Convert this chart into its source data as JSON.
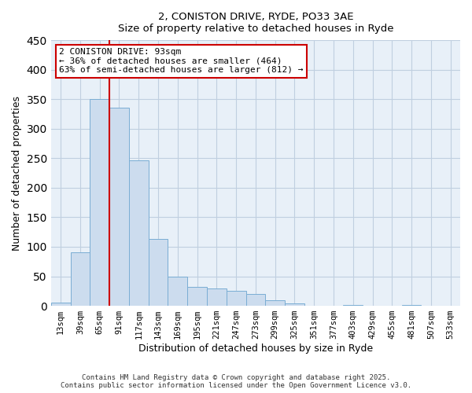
{
  "title_line1": "2, CONISTON DRIVE, RYDE, PO33 3AE",
  "title_line2": "Size of property relative to detached houses in Ryde",
  "xlabel": "Distribution of detached houses by size in Ryde",
  "ylabel": "Number of detached properties",
  "bar_labels": [
    "13sqm",
    "39sqm",
    "65sqm",
    "91sqm",
    "117sqm",
    "143sqm",
    "169sqm",
    "195sqm",
    "221sqm",
    "247sqm",
    "273sqm",
    "299sqm",
    "325sqm",
    "351sqm",
    "377sqm",
    "403sqm",
    "429sqm",
    "455sqm",
    "481sqm",
    "507sqm",
    "533sqm"
  ],
  "bar_values": [
    6,
    90,
    350,
    335,
    247,
    113,
    50,
    32,
    30,
    25,
    20,
    9,
    4,
    0,
    0,
    1,
    0,
    0,
    1,
    0,
    0
  ],
  "bar_color": "#ccdcee",
  "bar_edge_color": "#7aadd4",
  "ylim": [
    0,
    450
  ],
  "yticks": [
    0,
    50,
    100,
    150,
    200,
    250,
    300,
    350,
    400,
    450
  ],
  "vline_x_index": 3,
  "vline_color": "#cc0000",
  "annotation_title": "2 CONISTON DRIVE: 93sqm",
  "annotation_line1": "← 36% of detached houses are smaller (464)",
  "annotation_line2": "63% of semi-detached houses are larger (812) →",
  "annotation_box_color": "#ffffff",
  "annotation_box_edge": "#cc0000",
  "footer_line1": "Contains HM Land Registry data © Crown copyright and database right 2025.",
  "footer_line2": "Contains public sector information licensed under the Open Government Licence v3.0.",
  "bg_color": "#ffffff",
  "plot_bg_color": "#e8f0f8",
  "grid_color": "#c0cfe0"
}
